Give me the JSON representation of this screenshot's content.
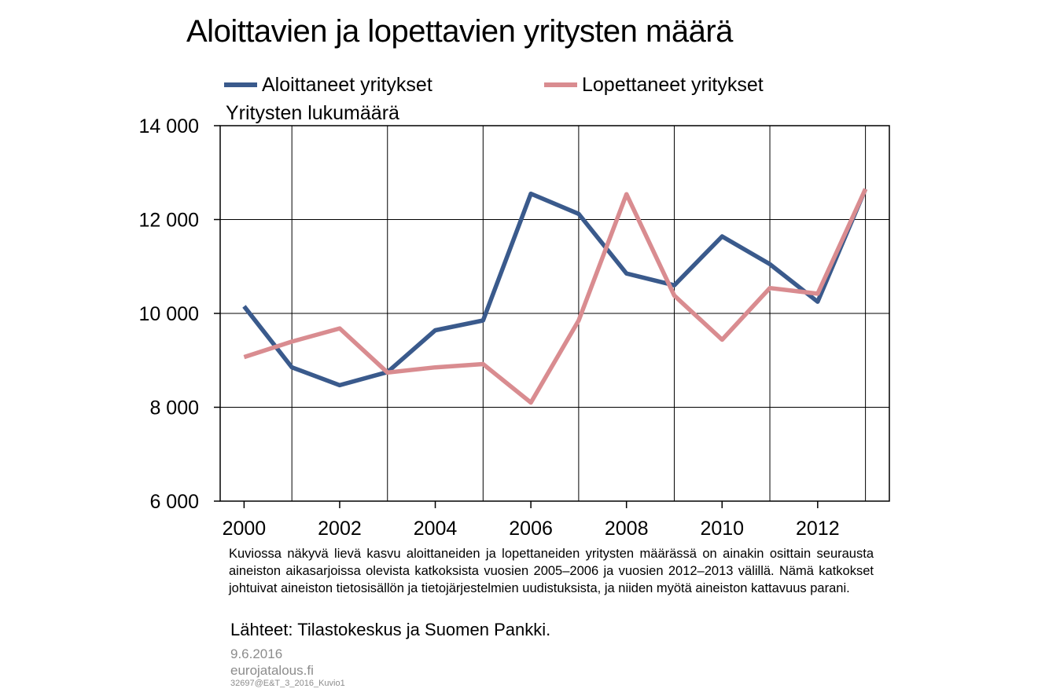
{
  "title": "Aloittavien ja lopettavien yritysten määrä",
  "footnote": "Kuviossa näkyvä lievä kasvu aloittaneiden ja lopettaneiden yritysten määrässä on ainakin osittain seurausta aineiston aikasarjoissa olevista katkoksista vuosien 2005–2006 ja vuosien 2012–2013 välillä. Nämä katkokset johtuivat aineiston tietosisällön ja tietojärjestelmien uudistuksista, ja niiden myötä aineiston kattavuus parani.",
  "source": "Lähteet: Tilastokeskus ja Suomen Pankki.",
  "date": "9.6.2016",
  "site": "eurojatalous.fi",
  "code": "32697@E&T_3_2016_Kuvio1",
  "chart_data": {
    "type": "line",
    "title": "Aloittavien ja lopettavien yritysten määrä",
    "ylabel": "Yritysten lukumäärä",
    "xlabel": "",
    "ylim": [
      6000,
      14000
    ],
    "yticks": [
      6000,
      8000,
      10000,
      12000,
      14000
    ],
    "ytick_labels": [
      "6 000",
      "8 000",
      "10 000",
      "12 000",
      "14 000"
    ],
    "xlim": [
      1999.5,
      2013.5
    ],
    "xticks": [
      2000,
      2002,
      2004,
      2006,
      2008,
      2010,
      2012
    ],
    "xtick_labels": [
      "2000",
      "2002",
      "2004",
      "2006",
      "2008",
      "2010",
      "2012"
    ],
    "grid": true,
    "legend_position": "top",
    "x": [
      2000,
      2001,
      2002,
      2003,
      2004,
      2005,
      2006,
      2007,
      2008,
      2009,
      2010,
      2011,
      2012,
      2013
    ],
    "series": [
      {
        "name": "Aloittaneet yritykset",
        "color": "#3a5a8c",
        "values": [
          10150,
          8850,
          8470,
          8750,
          9640,
          9850,
          12550,
          12120,
          10850,
          10600,
          11640,
          11050,
          10250,
          12650
        ]
      },
      {
        "name": "Lopettaneet yritykset",
        "color": "#d98c90",
        "values": [
          9070,
          9400,
          9680,
          8740,
          8850,
          8920,
          8100,
          9850,
          12540,
          10380,
          9440,
          10540,
          10420,
          12650
        ]
      }
    ]
  }
}
